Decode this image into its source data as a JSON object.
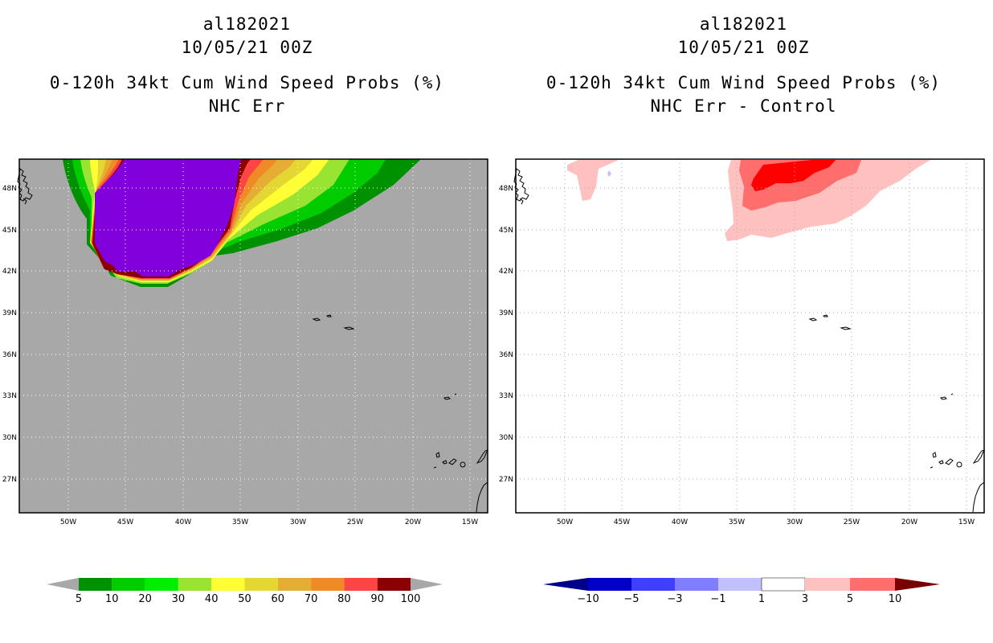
{
  "left_panel": {
    "title_lines": [
      "al182021",
      "10/05/21 00Z",
      "0-120h 34kt Cum Wind Speed Probs (%)",
      "NHC Err"
    ],
    "colorbar": {
      "labels": [
        "5",
        "10",
        "20",
        "30",
        "40",
        "50",
        "60",
        "70",
        "80",
        "90",
        "100"
      ],
      "colors": [
        "#009100",
        "#00cc00",
        "#00ee00",
        "#99e333",
        "#ffff33",
        "#e5d733",
        "#e5ad33",
        "#ef8b27",
        "#ff4444",
        "#8b0000",
        "#8200dc"
      ],
      "extend_color": "#a8a8a8"
    }
  },
  "right_panel": {
    "title_lines": [
      "al182021",
      "10/05/21 00Z",
      "0-120h 34kt Cum Wind Speed Probs (%)",
      "NHC Err - Control"
    ],
    "colorbar": {
      "labels": [
        "−10",
        "−5",
        "−3",
        "−1",
        "1",
        "3",
        "5",
        "10"
      ],
      "colors": [
        "#0000c8",
        "#3f3fff",
        "#7e7eff",
        "#c0c0ff",
        "#ffffff",
        "#ffc0c0",
        "#ff6d6d",
        "#ff0000"
      ],
      "low_extend_color": "#00008b",
      "high_extend_color": "#7a0000"
    }
  },
  "map": {
    "lat_labels": [
      "48N",
      "45N",
      "42N",
      "39N",
      "36N",
      "33N",
      "30N",
      "27N"
    ],
    "lon_labels": [
      "50W",
      "45W",
      "40W",
      "35W",
      "30W",
      "25W",
      "20W",
      "15W"
    ]
  }
}
